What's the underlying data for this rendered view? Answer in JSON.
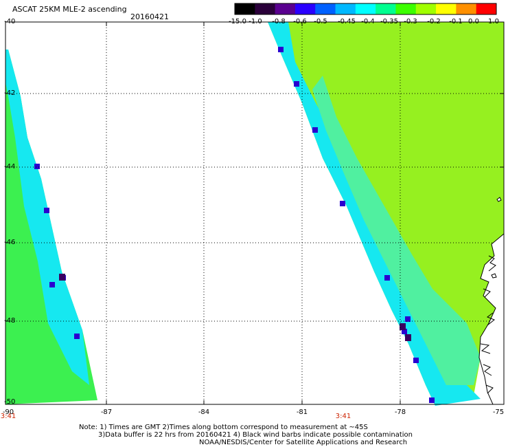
{
  "header": {
    "title": "ASCAT 25KM MLE-2 ascending",
    "date": "20160421"
  },
  "colorbar": {
    "labels": [
      "-15.0",
      "-1.0",
      "-0.8",
      "-0.6",
      "-0.5",
      "-0.45",
      "-0.4",
      "-0.35",
      "-0.3",
      "-0.2",
      "-0.1",
      "0.0",
      "1.0"
    ],
    "colors": [
      "#000000",
      "#2a003a",
      "#5a0090",
      "#2a00ff",
      "#0060ff",
      "#00b8ff",
      "#00ffff",
      "#00ff90",
      "#3cff00",
      "#a0ff00",
      "#ffff00",
      "#ff9000",
      "#ff0000"
    ]
  },
  "axes": {
    "y_ticks": [
      "-40",
      "-42",
      "-44",
      "-46",
      "-48",
      "-50"
    ],
    "x_ticks": [
      "-90",
      "-87",
      "-84",
      "-81",
      "-78",
      "-75"
    ]
  },
  "time_labels": [
    "3:41",
    "3:41"
  ],
  "notes": [
    "Note: 1) Times are GMT 2)Times along bottom correspond to measurement at ~45S",
    "3)Data buffer is 22 hrs from 20160421 4) Black wind barbs indicate possible contamination",
    "NOAA/NESDIS/Center for Satellite Applications and Research"
  ]
}
